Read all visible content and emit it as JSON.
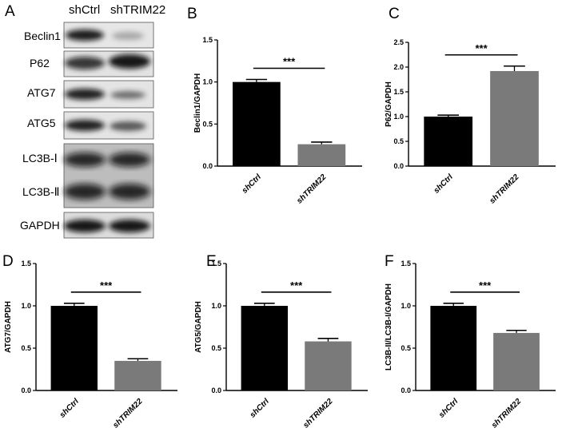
{
  "figure": {
    "blot": {
      "panel_label": "A",
      "lanes": [
        "shCtrl",
        "shTRIM22"
      ],
      "rows": [
        {
          "label": "Beclin1",
          "intensity": [
            0.92,
            0.35
          ]
        },
        {
          "label": "P62",
          "intensity": [
            0.8,
            0.95
          ]
        },
        {
          "label": "ATG7",
          "intensity": [
            0.9,
            0.6
          ]
        },
        {
          "label": "ATG5",
          "intensity": [
            0.9,
            0.72
          ]
        },
        {
          "labels": [
            "LC3B-Ⅰ",
            "LC3B-Ⅱ"
          ],
          "intensity": [
            0.85,
            0.85
          ]
        },
        {
          "label": "GAPDH",
          "intensity": [
            0.95,
            0.95
          ]
        }
      ]
    }
  },
  "chart_data": [
    {
      "panel_label": "B",
      "type": "bar",
      "categories": [
        "shCtrl",
        "shTRIM22"
      ],
      "values": [
        1.0,
        0.26
      ],
      "errors": [
        0.03,
        0.025
      ],
      "colors": [
        "#000000",
        "#7a7a7a"
      ],
      "ylabel": "Beclin1/GAPDH",
      "ylim": [
        0,
        1.5
      ],
      "yticks": [
        "0.0",
        "0.5",
        "1.0",
        "1.5"
      ],
      "significance": "***"
    },
    {
      "panel_label": "C",
      "type": "bar",
      "categories": [
        "shCtrl",
        "shTRIM22"
      ],
      "values": [
        1.0,
        1.92
      ],
      "errors": [
        0.03,
        0.1
      ],
      "colors": [
        "#000000",
        "#7a7a7a"
      ],
      "ylabel": "P62/GAPDH",
      "ylim": [
        0,
        2.5
      ],
      "yticks": [
        "0.0",
        "0.5",
        "1.0",
        "1.5",
        "2.0",
        "2.5"
      ],
      "significance": "***"
    },
    {
      "panel_label": "D",
      "type": "bar",
      "categories": [
        "shCtrl",
        "shTRIM22"
      ],
      "values": [
        1.0,
        0.35
      ],
      "errors": [
        0.03,
        0.025
      ],
      "colors": [
        "#000000",
        "#7a7a7a"
      ],
      "ylabel": "ATG7/GAPDH",
      "ylim": [
        0,
        1.5
      ],
      "yticks": [
        "0.0",
        "0.5",
        "1.0",
        "1.5"
      ],
      "significance": "***"
    },
    {
      "panel_label": "E",
      "type": "bar",
      "categories": [
        "shCtrl",
        "shTRIM22"
      ],
      "values": [
        1.0,
        0.58
      ],
      "errors": [
        0.03,
        0.035
      ],
      "colors": [
        "#000000",
        "#7a7a7a"
      ],
      "ylabel": "ATG5/GAPDH",
      "ylim": [
        0,
        1.5
      ],
      "yticks": [
        "0.0",
        "0.5",
        "1.0",
        "1.5"
      ],
      "significance": "***"
    },
    {
      "panel_label": "F",
      "type": "bar",
      "categories": [
        "shCtrl",
        "shTRIM22"
      ],
      "values": [
        1.0,
        0.68
      ],
      "errors": [
        0.03,
        0.03
      ],
      "colors": [
        "#000000",
        "#7a7a7a"
      ],
      "ylabel": "LC3B-II/LC3B-I/GAPDH",
      "ylim": [
        0,
        1.5
      ],
      "yticks": [
        "0.0",
        "0.5",
        "1.0",
        "1.5"
      ],
      "significance": "***"
    }
  ]
}
